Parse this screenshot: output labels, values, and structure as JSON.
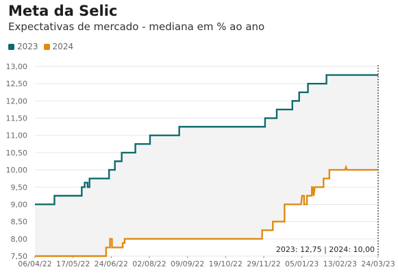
{
  "title": "Meta da Selic",
  "subtitle": "Expectativas de mercado - mediana em % ao ano",
  "colors": {
    "s2023": "#0d6b6b",
    "s2024": "#e08a12",
    "band": "#f3f3f3",
    "grid": "#e6e6e6"
  },
  "readout": "2023: 12,75 | 2024: 10,00",
  "chart_data": {
    "type": "line",
    "title": "Meta da Selic",
    "subtitle": "Expectativas de mercado - mediana em % ao ano",
    "ylim": [
      7.5,
      13.0
    ],
    "y_ticks": [
      "7,50",
      "8,00",
      "8,50",
      "9,00",
      "9,50",
      "10,00",
      "10,50",
      "11,00",
      "11,50",
      "12,00",
      "12,50",
      "13,00"
    ],
    "y_tick_values": [
      7.5,
      8.0,
      8.5,
      9.0,
      9.5,
      10.0,
      10.5,
      11.0,
      11.5,
      12.0,
      12.5,
      13.0
    ],
    "x_ticks": [
      "06/04/22",
      "17/05/22",
      "24/06/22",
      "02/08/22",
      "09/09/22",
      "19/10/22",
      "29/11/22",
      "05/01/23",
      "13/02/23",
      "24/03/23"
    ],
    "x_range": [
      "06/04/22",
      "24/03/23"
    ],
    "grid": true,
    "legend": "top-left",
    "series": [
      {
        "name": "2023",
        "color": "#0d6b6b",
        "points": [
          [
            "06/04/22",
            9.0
          ],
          [
            "26/04/22",
            9.0
          ],
          [
            "26/04/22",
            9.25
          ],
          [
            "24/05/22",
            9.25
          ],
          [
            "24/05/22",
            9.5
          ],
          [
            "27/05/22",
            9.5
          ],
          [
            "27/05/22",
            9.63
          ],
          [
            "30/05/22",
            9.63
          ],
          [
            "30/05/22",
            9.5
          ],
          [
            "01/06/22",
            9.5
          ],
          [
            "01/06/22",
            9.75
          ],
          [
            "15/06/22",
            9.75
          ],
          [
            "15/06/22",
            9.75
          ],
          [
            "21/06/22",
            9.75
          ],
          [
            "21/06/22",
            10.0
          ],
          [
            "27/06/22",
            10.0
          ],
          [
            "27/06/22",
            10.25
          ],
          [
            "04/07/22",
            10.25
          ],
          [
            "04/07/22",
            10.5
          ],
          [
            "18/07/22",
            10.5
          ],
          [
            "18/07/22",
            10.75
          ],
          [
            "02/08/22",
            10.75
          ],
          [
            "02/08/22",
            11.0
          ],
          [
            "01/09/22",
            11.0
          ],
          [
            "01/09/22",
            11.25
          ],
          [
            "28/11/22",
            11.25
          ],
          [
            "28/11/22",
            11.5
          ],
          [
            "10/12/22",
            11.5
          ],
          [
            "10/12/22",
            11.75
          ],
          [
            "26/12/22",
            11.75
          ],
          [
            "26/12/22",
            12.0
          ],
          [
            "02/01/23",
            12.0
          ],
          [
            "02/01/23",
            12.25
          ],
          [
            "11/01/23",
            12.25
          ],
          [
            "11/01/23",
            12.5
          ],
          [
            "30/01/23",
            12.5
          ],
          [
            "30/01/23",
            12.75
          ],
          [
            "24/03/23",
            12.75
          ]
        ]
      },
      {
        "name": "2024",
        "color": "#e08a12",
        "points": [
          [
            "06/04/22",
            7.5
          ],
          [
            "18/06/22",
            7.5
          ],
          [
            "18/06/22",
            7.75
          ],
          [
            "22/06/22",
            7.75
          ],
          [
            "22/06/22",
            8.0
          ],
          [
            "24/06/22",
            8.0
          ],
          [
            "24/06/22",
            7.75
          ],
          [
            "05/07/22",
            7.75
          ],
          [
            "05/07/22",
            7.88
          ],
          [
            "07/07/22",
            7.88
          ],
          [
            "07/07/22",
            8.0
          ],
          [
            "25/11/22",
            8.0
          ],
          [
            "25/11/22",
            8.25
          ],
          [
            "06/12/22",
            8.25
          ],
          [
            "06/12/22",
            8.5
          ],
          [
            "18/12/22",
            8.5
          ],
          [
            "18/12/22",
            9.0
          ],
          [
            "04/01/23",
            9.0
          ],
          [
            "05/01/23",
            9.25
          ],
          [
            "07/01/23",
            9.25
          ],
          [
            "07/01/23",
            9.0
          ],
          [
            "10/01/23",
            9.0
          ],
          [
            "10/01/23",
            9.25
          ],
          [
            "15/01/23",
            9.25
          ],
          [
            "15/01/23",
            9.5
          ],
          [
            "16/01/23",
            9.5
          ],
          [
            "17/01/23",
            9.25
          ],
          [
            "18/01/23",
            9.5
          ],
          [
            "27/01/23",
            9.5
          ],
          [
            "27/01/23",
            9.75
          ],
          [
            "02/02/23",
            9.75
          ],
          [
            "02/02/23",
            10.0
          ],
          [
            "18/02/23",
            10.0
          ],
          [
            "19/02/23",
            10.08
          ],
          [
            "20/02/23",
            10.0
          ],
          [
            "24/03/23",
            10.0
          ]
        ]
      }
    ]
  }
}
